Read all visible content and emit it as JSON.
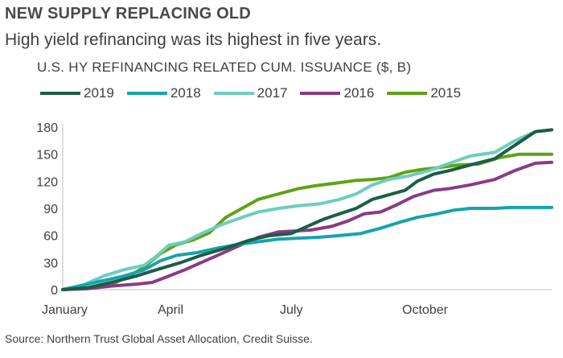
{
  "header": {
    "title": "NEW SUPPLY REPLACING OLD",
    "subtitle": "High yield refinancing was its highest in five years."
  },
  "footer": {
    "source": "Source: Northern Trust Global Asset Allocation, Credit Suisse."
  },
  "chart_data": {
    "type": "line",
    "title": "U.S. HY REFINANCING RELATED CUM. ISSUANCE ($, B)",
    "xlabel": "",
    "ylabel": "",
    "ylim": [
      0,
      180
    ],
    "yticks": [
      "0",
      "30",
      "60",
      "90",
      "120",
      "150",
      "180"
    ],
    "xlim": [
      0,
      12
    ],
    "xticks": [
      {
        "label": "January",
        "x": 0
      },
      {
        "label": "April",
        "x": 3
      },
      {
        "label": "July",
        "x": 6
      },
      {
        "label": "October",
        "x": 9
      }
    ],
    "grid": false,
    "legend_position": "top",
    "series": [
      {
        "name": "2019",
        "color": "#1a5e46",
        "points": [
          [
            0,
            0
          ],
          [
            0.6,
            2
          ],
          [
            1.2,
            8
          ],
          [
            1.8,
            15
          ],
          [
            2.3,
            22
          ],
          [
            2.9,
            30
          ],
          [
            3.4,
            38
          ],
          [
            4.0,
            46
          ],
          [
            4.6,
            55
          ],
          [
            5.1,
            60
          ],
          [
            5.6,
            62
          ],
          [
            6.0,
            70
          ],
          [
            6.4,
            78
          ],
          [
            6.8,
            84
          ],
          [
            7.2,
            90
          ],
          [
            7.6,
            100
          ],
          [
            8.0,
            105
          ],
          [
            8.4,
            110
          ],
          [
            8.7,
            120
          ],
          [
            9.1,
            128
          ],
          [
            9.5,
            132
          ],
          [
            10.0,
            138
          ],
          [
            10.6,
            145
          ],
          [
            11.1,
            160
          ],
          [
            11.6,
            175
          ],
          [
            12.0,
            177
          ]
        ]
      },
      {
        "name": "2018",
        "color": "#16a3b0",
        "points": [
          [
            0,
            0
          ],
          [
            0.5,
            5
          ],
          [
            1.0,
            10
          ],
          [
            1.5,
            15
          ],
          [
            2.0,
            22
          ],
          [
            2.4,
            32
          ],
          [
            2.8,
            38
          ],
          [
            3.3,
            41
          ],
          [
            3.8,
            46
          ],
          [
            4.3,
            50
          ],
          [
            4.8,
            53
          ],
          [
            5.3,
            56
          ],
          [
            5.8,
            57
          ],
          [
            6.3,
            58
          ],
          [
            6.8,
            60
          ],
          [
            7.3,
            62
          ],
          [
            7.8,
            68
          ],
          [
            8.3,
            75
          ],
          [
            8.7,
            80
          ],
          [
            9.2,
            84
          ],
          [
            9.6,
            88
          ],
          [
            10.0,
            90
          ],
          [
            10.6,
            90
          ],
          [
            11.0,
            91
          ],
          [
            11.5,
            91
          ],
          [
            12.0,
            91
          ]
        ]
      },
      {
        "name": "2017",
        "color": "#6ecdc0",
        "points": [
          [
            0,
            0
          ],
          [
            0.5,
            5
          ],
          [
            1.0,
            15
          ],
          [
            1.5,
            22
          ],
          [
            2.0,
            27
          ],
          [
            2.3,
            37
          ],
          [
            2.6,
            49
          ],
          [
            3.0,
            53
          ],
          [
            3.4,
            62
          ],
          [
            3.9,
            72
          ],
          [
            4.4,
            80
          ],
          [
            4.8,
            86
          ],
          [
            5.3,
            90
          ],
          [
            5.8,
            93
          ],
          [
            6.3,
            95
          ],
          [
            6.8,
            100
          ],
          [
            7.2,
            106
          ],
          [
            7.6,
            116
          ],
          [
            8.0,
            122
          ],
          [
            8.5,
            126
          ],
          [
            9.0,
            132
          ],
          [
            9.5,
            140
          ],
          [
            10.0,
            148
          ],
          [
            10.6,
            152
          ],
          [
            11.1,
            165
          ],
          [
            11.6,
            175
          ],
          [
            12.0,
            177
          ]
        ]
      },
      {
        "name": "2016",
        "color": "#8b3a85",
        "points": [
          [
            0,
            0
          ],
          [
            0.6,
            1
          ],
          [
            1.2,
            4
          ],
          [
            1.8,
            6
          ],
          [
            2.2,
            8
          ],
          [
            2.6,
            15
          ],
          [
            3.0,
            22
          ],
          [
            3.4,
            30
          ],
          [
            3.8,
            38
          ],
          [
            4.3,
            48
          ],
          [
            4.8,
            58
          ],
          [
            5.3,
            64
          ],
          [
            5.7,
            65
          ],
          [
            6.1,
            66
          ],
          [
            6.6,
            70
          ],
          [
            7.0,
            76
          ],
          [
            7.4,
            84
          ],
          [
            7.8,
            86
          ],
          [
            8.2,
            94
          ],
          [
            8.6,
            103
          ],
          [
            9.1,
            110
          ],
          [
            9.5,
            112
          ],
          [
            10.0,
            116
          ],
          [
            10.6,
            122
          ],
          [
            11.1,
            132
          ],
          [
            11.6,
            140
          ],
          [
            12.0,
            141
          ]
        ]
      },
      {
        "name": "2015",
        "color": "#5ea313",
        "points": [
          [
            0,
            0
          ],
          [
            0.6,
            2
          ],
          [
            1.2,
            6
          ],
          [
            1.6,
            14
          ],
          [
            2.0,
            25
          ],
          [
            2.4,
            40
          ],
          [
            2.8,
            50
          ],
          [
            3.2,
            55
          ],
          [
            3.6,
            63
          ],
          [
            4.0,
            80
          ],
          [
            4.4,
            90
          ],
          [
            4.8,
            100
          ],
          [
            5.3,
            106
          ],
          [
            5.8,
            112
          ],
          [
            6.2,
            115
          ],
          [
            6.7,
            118
          ],
          [
            7.2,
            121
          ],
          [
            7.6,
            122
          ],
          [
            8.0,
            124
          ],
          [
            8.4,
            130
          ],
          [
            8.8,
            133
          ],
          [
            9.2,
            135
          ],
          [
            9.7,
            138
          ],
          [
            10.2,
            139
          ],
          [
            10.7,
            146
          ],
          [
            11.2,
            150
          ],
          [
            11.6,
            150
          ],
          [
            12.0,
            150
          ]
        ]
      }
    ]
  }
}
